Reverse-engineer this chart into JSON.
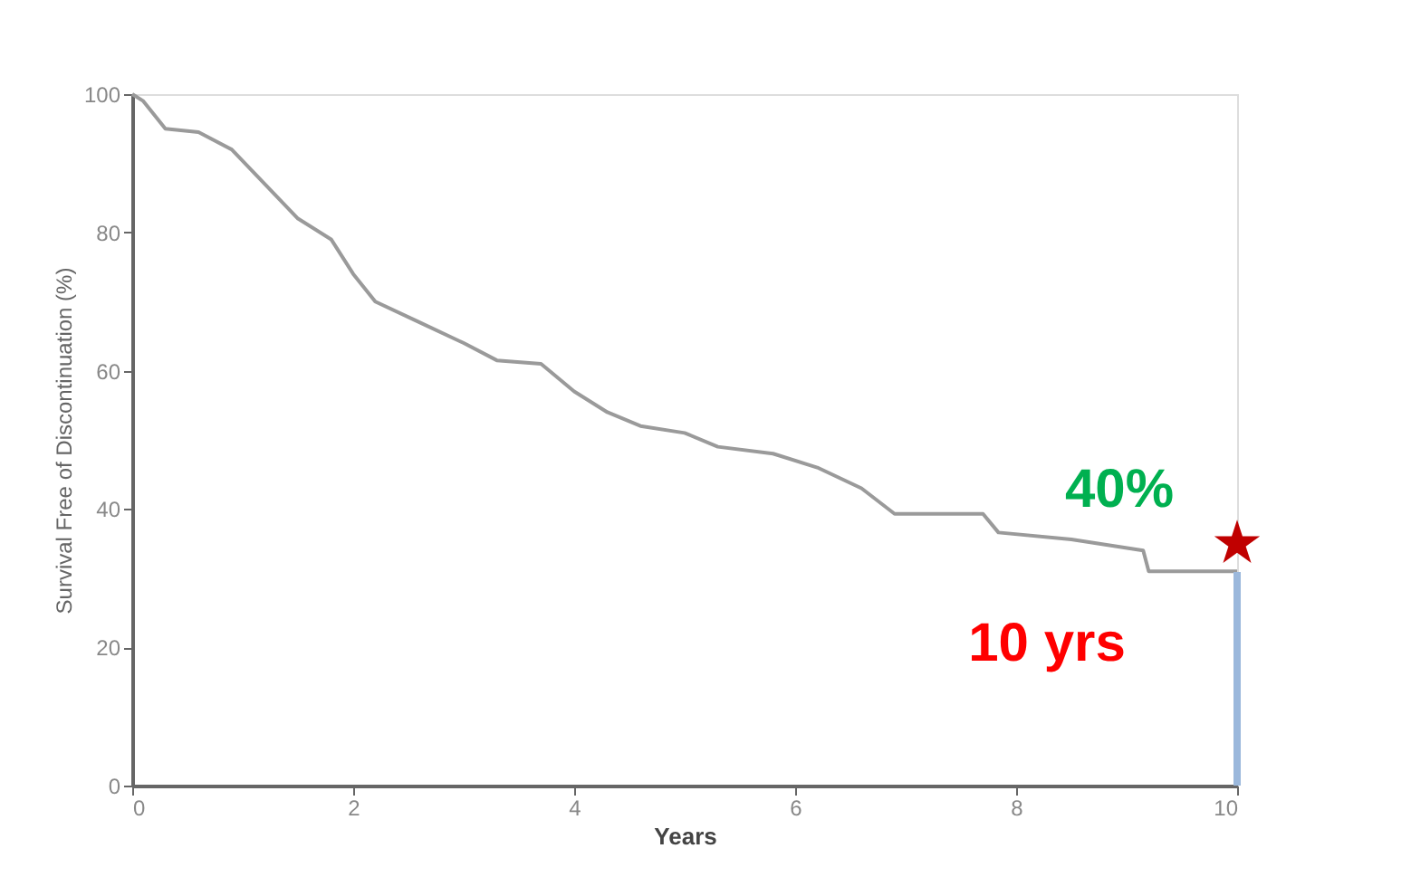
{
  "chart_data": {
    "type": "line",
    "xlabel": "Years",
    "ylabel": "Survival Free of Discontinuation (%)",
    "xlim": [
      0,
      10
    ],
    "xticks": [
      0,
      2,
      4,
      6,
      8,
      10
    ],
    "ylim": [
      0,
      100
    ],
    "yticks": [
      0,
      20,
      40,
      60,
      80,
      100
    ],
    "grid": false,
    "marker": "none",
    "line_style": "solid",
    "series": [
      {
        "color": "#9a9a9a",
        "x": [
          0,
          0.1,
          0.3,
          0.6,
          0.9,
          1.2,
          1.5,
          1.8,
          2.0,
          2.2,
          2.6,
          3.0,
          3.3,
          3.7,
          4.0,
          4.3,
          4.6,
          5.0,
          5.3,
          5.8,
          6.2,
          6.6,
          6.9,
          7.7,
          7.84,
          8.5,
          9.15,
          9.2,
          10
        ],
        "values": [
          100,
          99,
          95,
          94.5,
          92,
          87,
          82,
          79,
          74,
          70,
          67,
          64,
          61.5,
          61,
          57,
          54,
          52,
          51,
          49,
          48,
          46,
          43,
          39.3,
          39.3,
          36.6,
          35.6,
          34,
          31,
          31
        ]
      },
      {
        "type": "scatter",
        "marker": "star",
        "color": "#c00000",
        "x": [
          10
        ],
        "values": [
          35
        ]
      }
    ],
    "ref_lines": [
      {
        "axis": "x",
        "value": 10,
        "color": "#9bb8dc"
      }
    ],
    "annotations": [
      "40%",
      "10 yrs"
    ]
  }
}
